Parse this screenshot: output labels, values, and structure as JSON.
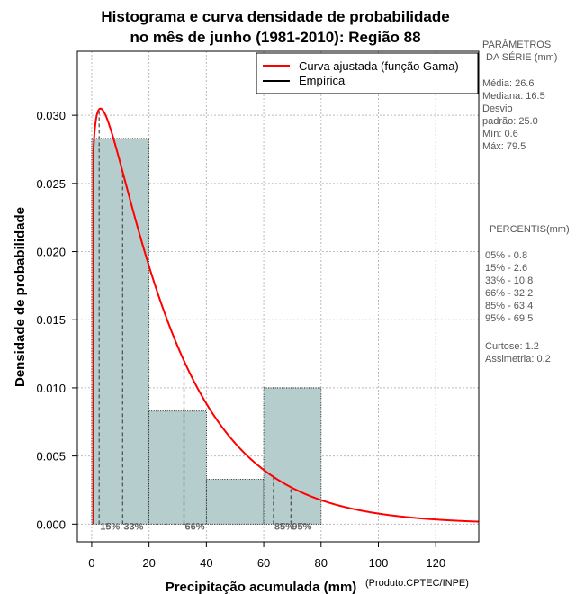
{
  "chart_data": {
    "type": "bar",
    "title_line1": "Histograma e curva densidade de probabilidade",
    "title_line2": "no mês de junho (1981-2010): Região 88",
    "xlabel": "Precipitação acumulada (mm)",
    "ylabel": "Densidade de probabilidade",
    "credit": "(Produto:CPTEC/INPE)",
    "xlim": [
      -5,
      135
    ],
    "ylim": [
      -0.0013,
      0.0347
    ],
    "x_ticks": [
      0,
      20,
      40,
      60,
      80,
      100,
      120
    ],
    "y_ticks": [
      0.0,
      0.005,
      0.01,
      0.015,
      0.02,
      0.025,
      0.03
    ],
    "y_tick_labels": [
      "0.000",
      "0.005",
      "0.010",
      "0.015",
      "0.020",
      "0.025",
      "0.030"
    ],
    "grid": true,
    "legend_position": "top-right",
    "bins": [
      {
        "start": 0,
        "end": 20,
        "value": 0.0283
      },
      {
        "start": 20,
        "end": 40,
        "value": 0.0083
      },
      {
        "start": 40,
        "end": 60,
        "value": 0.0033
      },
      {
        "start": 60,
        "end": 80,
        "value": 0.01
      }
    ],
    "series": [
      {
        "name": "Curva ajustada (função Gama)",
        "color": "#ff0000",
        "gamma_shape": 1.13,
        "gamma_scale": 23.5,
        "x_start": 0.6,
        "x_end": 135
      },
      {
        "name": "Empírica",
        "color": "#000000"
      }
    ],
    "percentile_lines": [
      {
        "x": 2.6,
        "label": "15%"
      },
      {
        "x": 10.8,
        "label": "33%"
      },
      {
        "x": 32.2,
        "label": "66%"
      },
      {
        "x": 63.4,
        "label": "85%"
      },
      {
        "x": 69.5,
        "label": "95%"
      }
    ]
  },
  "side_panel": {
    "params_header_1": "PARÂMETROS",
    "params_header_2": "DA SÉRIE (mm)",
    "params": [
      "Média:  26.6",
      "Mediana:  16.5",
      "Desvio",
      "padrão:  25.0",
      "Mín:  0.6",
      "Máx:  79.5"
    ],
    "percentis_header": "PERCENTIS(mm)",
    "percentis": [
      "05% -  0.8",
      "15% -  2.6",
      "33% -  10.8",
      "66% -  32.2",
      "85% -  63.4",
      "95% -  69.5"
    ],
    "stats": [
      "Curtose:  1.2",
      "Assimetria:  0.2"
    ]
  },
  "colors": {
    "bar_fill": "#b5cdcc",
    "curve": "#ff0000",
    "grid": "#bbbbbb"
  }
}
